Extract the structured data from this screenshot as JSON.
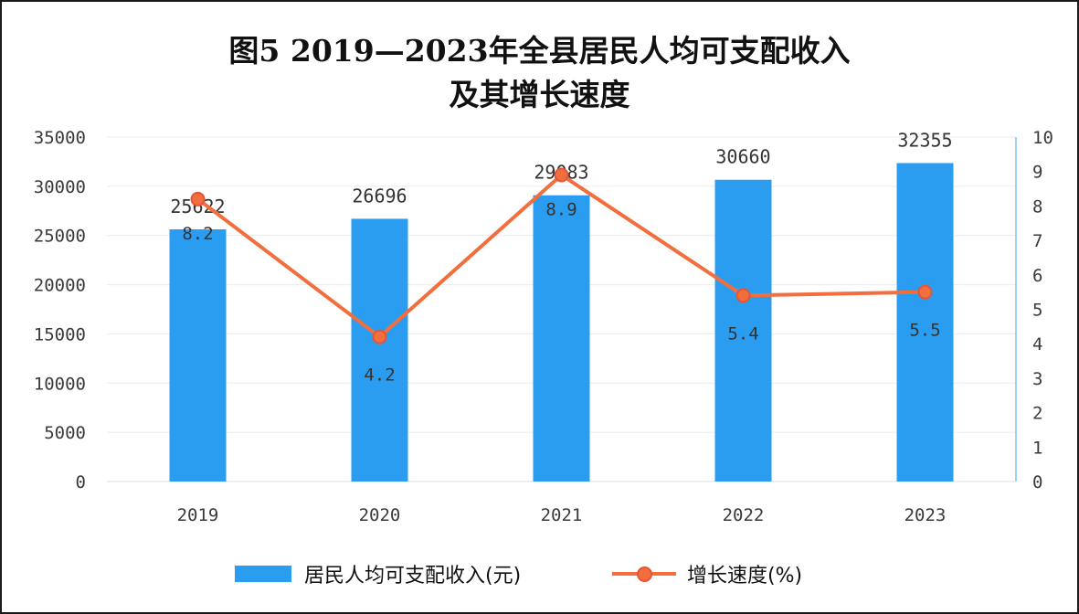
{
  "title": {
    "line1": "图5   2019—2023年全县居民人均可支配收入",
    "line2": "及其增长速度"
  },
  "chart_data": {
    "type": "bar",
    "categories": [
      "2019",
      "2020",
      "2021",
      "2022",
      "2023"
    ],
    "series": [
      {
        "name": "居民人均可支配收入(元)",
        "type": "bar",
        "axis": "left",
        "values": [
          25622,
          26696,
          29083,
          30660,
          32355
        ],
        "labels": [
          "25622",
          "26696",
          "29083",
          "30660",
          "32355"
        ]
      },
      {
        "name": "增长速度(%)",
        "type": "line",
        "axis": "right",
        "values": [
          8.2,
          4.2,
          8.9,
          5.4,
          5.5
        ],
        "labels": [
          "8.2",
          "4.2",
          "8.9",
          "5.4",
          "5.5"
        ]
      }
    ],
    "y_left": {
      "min": 0,
      "max": 35000,
      "ticks": [
        "0",
        "5000",
        "10000",
        "15000",
        "20000",
        "25000",
        "30000",
        "35000"
      ]
    },
    "y_right": {
      "min": 0,
      "max": 10,
      "ticks": [
        "0",
        "1",
        "2",
        "3",
        "4",
        "5",
        "6",
        "7",
        "8",
        "9",
        "10"
      ]
    },
    "grid": true,
    "legend": "bottom",
    "colors": {
      "bar": "#2b9df0",
      "line": "#f26f3d"
    }
  }
}
